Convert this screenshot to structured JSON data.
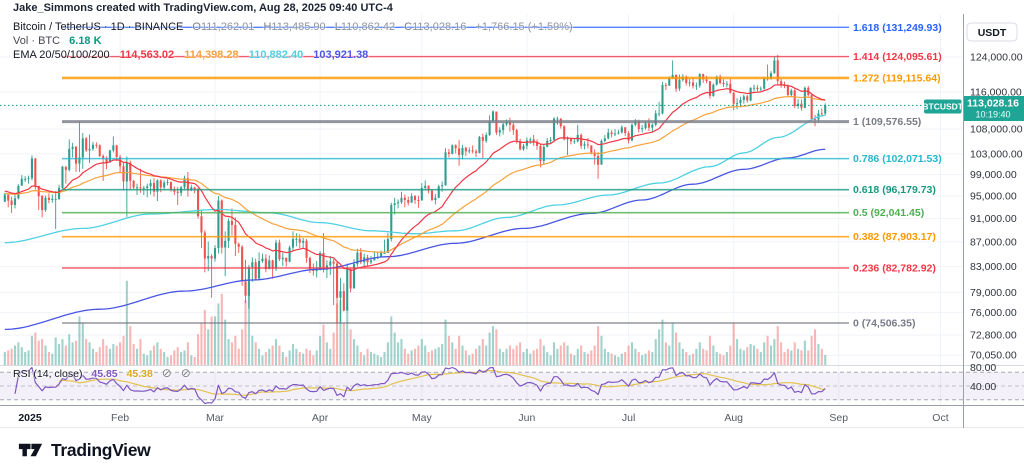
{
  "header": {
    "attribution": "Jake_Simmons created with TradingView.com, Aug 28, 2025 09:40 UTC-4"
  },
  "legend": {
    "symbol": "Bitcoin / TetherUS · 1D · BINANCE",
    "ohlc": [
      {
        "k": "O",
        "v": "111,262.01"
      },
      {
        "k": "H",
        "v": "113,485.90"
      },
      {
        "k": "L",
        "v": "110,862.42"
      },
      {
        "k": "C",
        "v": "113,028.16"
      }
    ],
    "change": "+1,766.15 (+1.59%)"
  },
  "branding": {
    "logo_text": "TradingView"
  },
  "price_scale": {
    "currency": "USDT",
    "rsi_labels": [
      {
        "label": "80.00",
        "y": 371
      },
      {
        "label": "40.00",
        "y": 390
      }
    ],
    "badge": {
      "symbol": "BTCUSDT",
      "price": "113,028.16",
      "time": "10:19:40",
      "color": "#1fa595"
    }
  },
  "colors": {
    "up": "#2f9e8f",
    "down": "#ef5350",
    "up_vol": "rgba(47,158,143,0.45)",
    "down_vol": "rgba(239,83,80,0.42)",
    "grid": "#f0f3fa",
    "tick_text": "#2f333d",
    "month_text": "#555a64",
    "scale_border": "#9aa0ab",
    "pane_sep": "#d6d9e0",
    "last_price_line": "#089981",
    "rsi_band": "rgba(126,87,194,0.09)",
    "rsi_dash": "#9b9ea7"
  },
  "chart_data": {
    "type": "candlestick",
    "title": "Bitcoin / TetherUS · 1D · BINANCE",
    "exchange": "BINANCE",
    "interval": "1D",
    "y_scale": "log",
    "unit": "thousand USDT",
    "lead_in_bars": 3,
    "first_open": 94.0,
    "y_ticks": [
      {
        "label": "124,000.00",
        "value": 124.0
      },
      {
        "label": "116,000.00",
        "value": 116.0
      },
      {
        "label": "108,000.00",
        "value": 108.0
      },
      {
        "label": "103,000.00",
        "value": 103.0
      },
      {
        "label": "99,000.00",
        "value": 99.0
      },
      {
        "label": "95,000.00",
        "value": 95.0
      },
      {
        "label": "91,000.00",
        "value": 91.0
      },
      {
        "label": "87,000.00",
        "value": 87.0
      },
      {
        "label": "83,000.00",
        "value": 83.0
      },
      {
        "label": "79,000.00",
        "value": 79.0
      },
      {
        "label": "76,000.00",
        "value": 76.0
      },
      {
        "label": "72,800.00",
        "value": 72.8
      },
      {
        "label": "70,050.00",
        "value": 70.05
      }
    ],
    "x_ticks": [
      {
        "label": "2025",
        "day": 0,
        "bold": true
      },
      {
        "label": "Feb",
        "day": 31
      },
      {
        "label": "Mar",
        "day": 59
      },
      {
        "label": "Apr",
        "day": 90
      },
      {
        "label": "May",
        "day": 120
      },
      {
        "label": "Jun",
        "day": 151
      },
      {
        "label": "Jul",
        "day": 181
      },
      {
        "label": "Aug",
        "day": 212
      },
      {
        "label": "Sep",
        "day": 243
      },
      {
        "label": "Oct",
        "day": 273
      }
    ],
    "close": [
      95.3,
      94.2,
      93.4,
      94.6,
      96.9,
      98.2,
      98.2,
      98.3,
      102.1,
      96.9,
      95.0,
      92.5,
      94.7,
      94.3,
      94.5,
      94.5,
      96.5,
      100.5,
      99.9,
      104.0,
      104.4,
      101.1,
      102.3,
      106.1,
      103.7,
      104.0,
      104.8,
      104.7,
      102.6,
      102.1,
      101.3,
      103.7,
      104.7,
      102.4,
      100.6,
      97.7,
      101.3,
      97.8,
      96.6,
      96.6,
      96.5,
      96.5,
      96.8,
      97.4,
      95.8,
      97.9,
      96.6,
      97.5,
      97.6,
      96.2,
      95.8,
      95.6,
      96.6,
      98.3,
      96.1,
      96.6,
      96.3,
      91.4,
      88.6,
      84.3,
      84.7,
      84.3,
      86.0,
      94.2,
      86.1,
      87.2,
      90.6,
      89.9,
      86.7,
      86.2,
      80.7,
      78.5,
      82.9,
      83.7,
      81.1,
      83.9,
      84.3,
      82.6,
      84.0,
      82.7,
      86.9,
      84.2,
      84.4,
      83.8,
      86.1,
      87.5,
      87.5,
      86.9,
      87.2,
      84.4,
      82.6,
      82.3,
      82.5,
      85.2,
      82.5,
      83.2,
      83.8,
      83.5,
      78.2,
      79.2,
      76.3,
      82.6,
      79.6,
      83.4,
      85.3,
      83.7,
      84.5,
      83.7,
      84.0,
      84.5,
      84.5,
      85.2,
      85.2,
      87.5,
      93.4,
      93.7,
      93.9,
      94.7,
      94.3,
      93.8,
      95.0,
      94.3,
      94.2,
      96.5,
      96.9,
      96.0,
      94.3,
      94.7,
      96.8,
      97.0,
      103.3,
      103.0,
      104.7,
      104.1,
      102.8,
      104.2,
      103.5,
      103.7,
      103.5,
      103.2,
      106.4,
      105.6,
      106.8,
      109.7,
      111.7,
      107.3,
      107.8,
      109.0,
      109.4,
      108.9,
      107.8,
      105.6,
      103.9,
      104.6,
      105.7,
      105.9,
      105.4,
      104.6,
      101.6,
      104.4,
      105.6,
      105.8,
      110.2,
      110.2,
      108.6,
      105.9,
      106.1,
      105.5,
      105.5,
      106.8,
      104.6,
      104.9,
      104.7,
      103.3,
      102.6,
      100.9,
      105.6,
      106.1,
      107.3,
      107.0,
      107.1,
      107.3,
      108.4,
      107.2,
      105.7,
      108.9,
      109.6,
      108.0,
      108.2,
      109.2,
      108.3,
      108.9,
      111.3,
      111.3,
      117.5,
      117.4,
      119.1,
      119.8,
      116.7,
      118.7,
      119.4,
      118.0,
      118.1,
      117.3,
      117.4,
      120.0,
      118.8,
      118.4,
      115.1,
      117.6,
      119.4,
      118.0,
      117.7,
      117.8,
      115.8,
      113.4,
      113.5,
      114.2,
      115.0,
      114.1,
      116.9,
      116.9,
      116.6,
      116.7,
      119.0,
      118.8,
      120.2,
      123.2,
      118.4,
      117.5,
      117.4,
      115.3,
      116.3,
      112.9,
      113.4,
      112.5,
      116.9,
      115.3,
      110.1,
      110.0,
      111.3,
      111.262,
      113.028
    ],
    "high": [
      95.6,
      95.1,
      94.9,
      95.2,
      97.2,
      98.9,
      98.7,
      98.8,
      102.7,
      102.2,
      95.4,
      95.2,
      95.1,
      95.5,
      95.3,
      95.9,
      97.1,
      100.7,
      100.6,
      105.9,
      105.2,
      104.6,
      109.6,
      107.2,
      106.4,
      106.9,
      105.4,
      105.3,
      104.9,
      102.9,
      102.5,
      103.8,
      106.5,
      104.8,
      102.8,
      101.4,
      102.5,
      101.7,
      98.0,
      97.3,
      100.1,
      96.9,
      97.3,
      98.1,
      98.3,
      98.1,
      98.1,
      97.9,
      98.1,
      97.7,
      96.8,
      96.7,
      96.9,
      98.8,
      99.5,
      97.1,
      96.7,
      96.5,
      92.5,
      89.0,
      87.1,
      85.0,
      86.5,
      95.0,
      94.4,
      88.8,
      91.0,
      92.8,
      91.2,
      86.9,
      86.5,
      84.1,
      83.3,
      84.5,
      84.3,
      85.3,
      85.1,
      85.0,
      84.8,
      84.1,
      87.4,
      87.4,
      85.3,
      84.5,
      86.4,
      88.8,
      88.5,
      88.3,
      87.7,
      87.5,
      84.6,
      83.5,
      83.9,
      85.5,
      88.5,
      84.0,
      84.7,
      84.2,
      83.9,
      81.2,
      80.4,
      83.5,
      82.8,
      84.2,
      85.9,
      86.0,
      85.1,
      84.9,
      84.7,
      85.4,
      85.3,
      85.6,
      87.4,
      88.5,
      93.8,
      94.7,
      94.4,
      95.8,
      95.3,
      94.9,
      95.5,
      95.2,
      95.1,
      97.4,
      97.9,
      97.0,
      96.3,
      95.4,
      97.1,
      97.7,
      104.1,
      104.0,
      104.9,
      104.9,
      105.8,
      104.8,
      104.4,
      104.3,
      104.7,
      103.9,
      106.6,
      107.1,
      107.3,
      110.9,
      112.0,
      111.4,
      108.4,
      109.3,
      110.0,
      110.4,
      109.3,
      108.1,
      106.0,
      105.0,
      106.3,
      106.3,
      106.8,
      105.9,
      104.9,
      104.9,
      106.2,
      106.4,
      110.5,
      110.6,
      110.3,
      108.8,
      106.5,
      106.2,
      106.1,
      108.9,
      107.1,
      105.5,
      106.2,
      104.7,
      103.9,
      103.4,
      105.9,
      106.8,
      108.1,
      107.8,
      108.0,
      107.9,
      108.8,
      108.2,
      107.6,
      109.2,
      110.1,
      110.0,
      108.9,
      109.6,
      110.3,
      109.2,
      112.0,
      113.8,
      118.2,
      118.0,
      119.5,
      123.2,
      120.0,
      119.9,
      120.0,
      119.7,
      118.9,
      119.1,
      118.1,
      120.2,
      120.1,
      119.6,
      118.4,
      117.9,
      119.7,
      119.9,
      118.8,
      118.4,
      118.9,
      116.0,
      114.6,
      114.9,
      115.4,
      115.3,
      117.0,
      117.6,
      117.5,
      117.2,
      119.3,
      122.2,
      120.7,
      124.0,
      124.5,
      118.9,
      118.3,
      117.7,
      116.7,
      116.6,
      114.4,
      114.3,
      117.2,
      117.3,
      115.4,
      111.0,
      112.1,
      112.4,
      113.486
    ],
    "low": [
      93.9,
      93.0,
      92.0,
      92.8,
      94.4,
      97.3,
      97.6,
      97.3,
      97.9,
      96.2,
      92.5,
      91.2,
      92.2,
      93.7,
      93.8,
      89.2,
      94.3,
      96.4,
      97.3,
      99.6,
      102.3,
      99.5,
      99.5,
      100.1,
      103.4,
      101.2,
      103.6,
      104.1,
      102.4,
      97.8,
      100.0,
      101.3,
      103.3,
      101.6,
      99.5,
      96.1,
      91.3,
      96.2,
      96.1,
      95.2,
      95.6,
      95.2,
      94.8,
      95.3,
      94.9,
      94.1,
      95.7,
      96.1,
      97.0,
      95.8,
      95.2,
      93.4,
      95.0,
      96.1,
      94.9,
      95.9,
      95.5,
      91.0,
      86.0,
      82.1,
      82.3,
      78.2,
      83.8,
      85.1,
      85.1,
      81.5,
      86.0,
      88.1,
      84.7,
      85.2,
      80.0,
      77.4,
      76.6,
      80.6,
      80.8,
      83.1,
      83.6,
      82.1,
      82.6,
      81.1,
      82.3,
      83.9,
      83.1,
      83.0,
      83.7,
      85.5,
      86.3,
      86.0,
      85.9,
      83.6,
      82.0,
      81.6,
      81.3,
      82.4,
      82.1,
      81.2,
      81.7,
      77.1,
      74.4,
      74.6,
      76.2,
      78.4,
      79.0,
      82.1,
      83.0,
      83.4,
      83.0,
      83.1,
      83.4,
      84.0,
      84.2,
      84.5,
      85.1,
      86.3,
      87.1,
      91.7,
      92.8,
      93.6,
      93.0,
      93.3,
      93.9,
      93.6,
      92.9,
      94.2,
      96.2,
      95.5,
      94.1,
      93.5,
      94.6,
      95.8,
      96.9,
      102.3,
      102.9,
      103.1,
      100.7,
      101.9,
      102.6,
      103.1,
      103.1,
      102.4,
      103.1,
      102.1,
      105.2,
      106.6,
      109.3,
      106.8,
      106.5,
      106.9,
      108.6,
      107.5,
      106.8,
      105.1,
      103.7,
      103.6,
      103.9,
      105.0,
      104.6,
      103.8,
      100.4,
      100.9,
      104.3,
      105.1,
      105.6,
      108.9,
      108.1,
      105.7,
      102.8,
      104.9,
      105.0,
      105.3,
      104.0,
      103.9,
      104.1,
      102.9,
      100.9,
      98.2,
      100.9,
      105.3,
      105.9,
      106.3,
      106.6,
      106.9,
      107.1,
      106.6,
      105.1,
      105.5,
      108.6,
      107.3,
      107.3,
      107.9,
      107.6,
      107.5,
      108.6,
      110.7,
      111.1,
      116.4,
      117.3,
      118.9,
      116.0,
      116.2,
      118.3,
      117.4,
      117.2,
      116.7,
      116.4,
      116.9,
      118.0,
      117.9,
      114.5,
      114.9,
      117.4,
      117.7,
      117.1,
      117.0,
      115.6,
      112.0,
      112.2,
      112.6,
      113.4,
      113.6,
      113.9,
      116.1,
      116.1,
      116.2,
      116.5,
      118.5,
      118.8,
      120.1,
      117.7,
      116.9,
      116.8,
      114.8,
      114.9,
      112.4,
      112.3,
      111.9,
      112.4,
      115.0,
      110.0,
      108.6,
      109.4,
      110.6,
      110.862
    ],
    "volume_k": [
      8,
      9,
      10,
      12,
      14,
      11,
      8,
      9,
      18,
      20,
      15,
      16,
      12,
      8,
      7,
      17,
      13,
      16,
      12,
      19,
      14,
      15,
      30,
      26,
      16,
      14,
      10,
      8,
      11,
      16,
      12,
      10,
      13,
      12,
      14,
      18,
      52,
      24,
      13,
      10,
      16,
      7,
      6,
      9,
      12,
      14,
      10,
      8,
      5,
      6,
      9,
      11,
      8,
      9,
      14,
      6,
      5,
      19,
      26,
      34,
      22,
      30,
      30,
      38,
      44,
      28,
      16,
      14,
      18,
      10,
      22,
      40,
      45,
      18,
      14,
      10,
      6,
      8,
      10,
      12,
      16,
      12,
      8,
      5,
      9,
      13,
      10,
      8,
      7,
      10,
      9,
      6,
      9,
      18,
      25,
      14,
      10,
      20,
      38,
      40,
      26,
      36,
      22,
      16,
      12,
      8,
      6,
      10,
      8,
      7,
      6,
      5,
      8,
      14,
      30,
      20,
      14,
      16,
      10,
      7,
      9,
      10,
      12,
      16,
      12,
      8,
      9,
      10,
      11,
      13,
      28,
      18,
      14,
      10,
      18,
      12,
      9,
      6,
      7,
      10,
      12,
      16,
      12,
      20,
      24,
      22,
      10,
      8,
      10,
      12,
      10,
      12,
      14,
      8,
      10,
      7,
      9,
      10,
      16,
      12,
      8,
      6,
      14,
      10,
      12,
      14,
      12,
      7,
      6,
      10,
      12,
      8,
      7,
      9,
      12,
      24,
      18,
      10,
      8,
      7,
      6,
      5,
      7,
      8,
      12,
      14,
      10,
      8,
      6,
      7,
      9,
      8,
      16,
      22,
      28,
      14,
      12,
      26,
      20,
      14,
      10,
      8,
      6,
      7,
      10,
      14,
      10,
      9,
      18,
      12,
      8,
      7,
      6,
      8,
      12,
      26,
      16,
      10,
      9,
      11,
      13,
      12,
      10,
      8,
      14,
      18,
      12,
      16,
      24,
      14,
      8,
      10,
      9,
      14,
      10,
      9,
      15,
      9,
      18,
      22,
      13,
      10,
      6.18
    ],
    "last_bar": {
      "open": "111,262.01",
      "high": "113,485.90",
      "low": "110,862.42",
      "close": "113,028.16",
      "change": "+1,766.15 (+1.59%)",
      "time": "10:19:40"
    },
    "last_price": {
      "value": 113.02816,
      "label": "113,028.16"
    },
    "indicators": {
      "volume": {
        "label": "Vol · BTC",
        "display_value": "6.18 K",
        "legend_color": "#089981"
      },
      "ema": {
        "label": "EMA 20/50/100/200",
        "periods": [
          20,
          50,
          100,
          200
        ],
        "colors": [
          "#f23645",
          "#f7a23b",
          "#4fd1e2",
          "#4956e3"
        ],
        "display_values": [
          "114,563.02",
          "114,398.28",
          "110,882.40",
          "103,921.38"
        ],
        "seeds": {
          "ema20": 96.0,
          "ema50": 95.5
        },
        "ema100_anchors": [
          [
            0,
            86.9
          ],
          [
            23,
            89.3
          ],
          [
            43,
            91.8
          ],
          [
            63,
            92.6
          ],
          [
            78,
            92.0
          ],
          [
            93,
            90.3
          ],
          [
            108,
            88.9
          ],
          [
            121,
            88.4
          ],
          [
            133,
            88.9
          ],
          [
            148,
            91.2
          ],
          [
            163,
            93.4
          ],
          [
            178,
            95.2
          ],
          [
            193,
            97.4
          ],
          [
            208,
            100.5
          ],
          [
            218,
            103.2
          ],
          [
            228,
            106.3
          ],
          [
            242,
            110.88
          ]
        ],
        "ema200_anchors": [
          [
            0,
            73.6
          ],
          [
            28,
            76.5
          ],
          [
            53,
            79.2
          ],
          [
            73,
            80.9
          ],
          [
            93,
            82.6
          ],
          [
            113,
            84.6
          ],
          [
            133,
            86.8
          ],
          [
            153,
            89.3
          ],
          [
            173,
            91.9
          ],
          [
            188,
            94.3
          ],
          [
            203,
            97.2
          ],
          [
            218,
            100.0
          ],
          [
            231,
            102.2
          ],
          [
            242,
            103.92
          ]
        ]
      },
      "rsi": {
        "label": "RSI (14, close)",
        "period": 14,
        "color": "#7e57c2",
        "ma_color": "#e3c34f",
        "ma_legend_color": "#d9a821",
        "display_value": "45.85",
        "ma_display_value": "45.38",
        "bands": [
          70,
          50,
          30
        ]
      }
    },
    "fib_levels": [
      {
        "ratio": "1.618",
        "price": 131.24993,
        "label": "1.618 (131,249.93)",
        "color": "#2962ff",
        "width": 1.4
      },
      {
        "ratio": "1.414",
        "price": 124.09561,
        "label": "1.414 (124,095.61)",
        "color": "#f23645",
        "width": 1.4
      },
      {
        "ratio": "1.272",
        "price": 119.11564,
        "label": "1.272 (119,115.64)",
        "color": "#ff9800",
        "width": 2.6
      },
      {
        "ratio": "1",
        "price": 109.57655,
        "label": "1 (109,576.55)",
        "color": "#787b86",
        "width": 3
      },
      {
        "ratio": "0.786",
        "price": 102.07153,
        "label": "0.786 (102,071.53)",
        "color": "#23b7cf",
        "width": 1.6
      },
      {
        "ratio": "0.618",
        "price": 96.17973,
        "label": "0.618 (96,179.73)",
        "color": "#179981",
        "width": 1.6
      },
      {
        "ratio": "0.5",
        "price": 92.04145,
        "label": "0.5 (92,041.45)",
        "color": "#4caf50",
        "width": 1.6
      },
      {
        "ratio": "0.382",
        "price": 87.90317,
        "label": "0.382 (87,903.17)",
        "color": "#ff9800",
        "width": 1.6
      },
      {
        "ratio": "0.236",
        "price": 82.78292,
        "label": "0.236 (82,782.92)",
        "color": "#f23645",
        "width": 1.6
      },
      {
        "ratio": "0",
        "price": 74.50635,
        "label": "0 (74,506.35)",
        "color": "#787b86",
        "width": 1.6
      }
    ]
  }
}
